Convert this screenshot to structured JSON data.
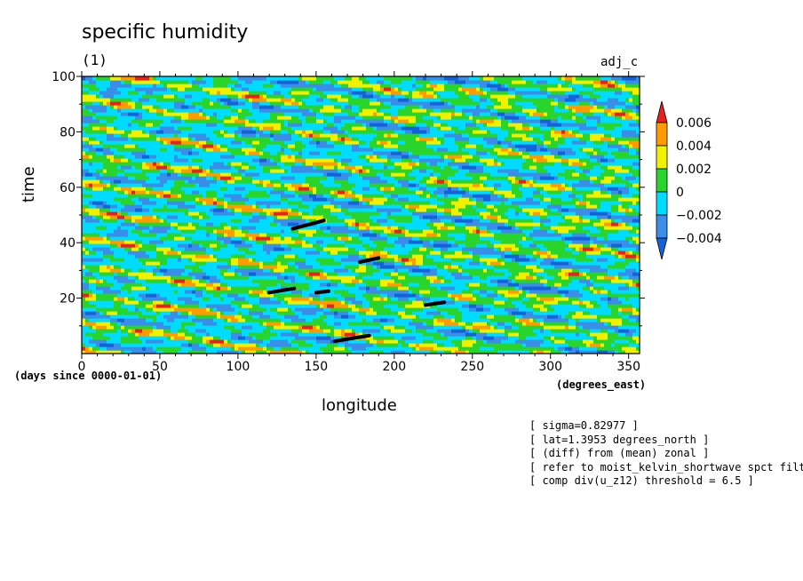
{
  "chart_data": {
    "type": "heatmap",
    "title": "specific humidity",
    "subtitle": "(1)",
    "tag": "adj_c",
    "xlabel": "longitude",
    "ylabel": "time",
    "x_units": "(degrees_east)",
    "time_units": "(days since 0000-01-01)",
    "xlim": [
      0,
      357
    ],
    "ylim": [
      0,
      100
    ],
    "x_ticks": [
      "0",
      "50",
      "100",
      "150",
      "200",
      "250",
      "300",
      "350"
    ],
    "y_ticks": [
      "100",
      "80",
      "60",
      "40",
      "20"
    ],
    "colorbar": {
      "levels": [
        "0.006",
        "0.004",
        "0.002",
        "0",
        "-0.002",
        "-0.004"
      ],
      "colors": [
        "#e8211c",
        "#ff9b00",
        "#f0f000",
        "#29d42c",
        "#00dcff",
        "#3a8ee8",
        "#1462d8"
      ]
    },
    "highlight_segments": [
      {
        "x": [
          135,
          155
        ],
        "y": [
          45,
          48
        ]
      },
      {
        "x": [
          178,
          190
        ],
        "y": [
          33,
          34.5
        ]
      },
      {
        "x": [
          120,
          136
        ],
        "y": [
          22,
          23.5
        ]
      },
      {
        "x": [
          150,
          158
        ],
        "y": [
          22,
          22.5
        ]
      },
      {
        "x": [
          220,
          232
        ],
        "y": [
          17.5,
          18.5
        ]
      },
      {
        "x": [
          162,
          184
        ],
        "y": [
          4.5,
          6.5
        ]
      }
    ]
  },
  "notes": [
    "[ sigma=0.82977 ]",
    "[ lat=1.3953 degrees_north ]",
    "[ (diff) from (mean) zonal ]",
    "[ refer to moist_kelvin_shortwave spct filte",
    "[ comp div(u_z12) threshold = 6.5 ]"
  ]
}
